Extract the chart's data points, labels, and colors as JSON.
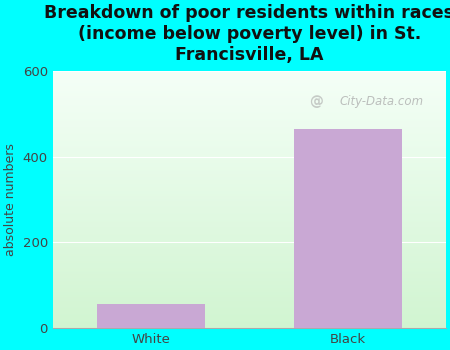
{
  "categories": [
    "White",
    "Black"
  ],
  "values": [
    55,
    465
  ],
  "bar_color": "#c9a8d4",
  "title": "Breakdown of poor residents within races\n(income below poverty level) in St.\nFrancisville, LA",
  "ylabel": "absolute numbers",
  "ylim": [
    0,
    600
  ],
  "yticks": [
    0,
    200,
    400,
    600
  ],
  "title_fontsize": 12.5,
  "label_fontsize": 9,
  "tick_fontsize": 9.5,
  "bg_outer": "#00ffff",
  "bg_plot_top": "#f5fffa",
  "bg_plot_bottom": "#d8f5d8",
  "watermark": "City-Data.com",
  "bar_width": 0.55
}
